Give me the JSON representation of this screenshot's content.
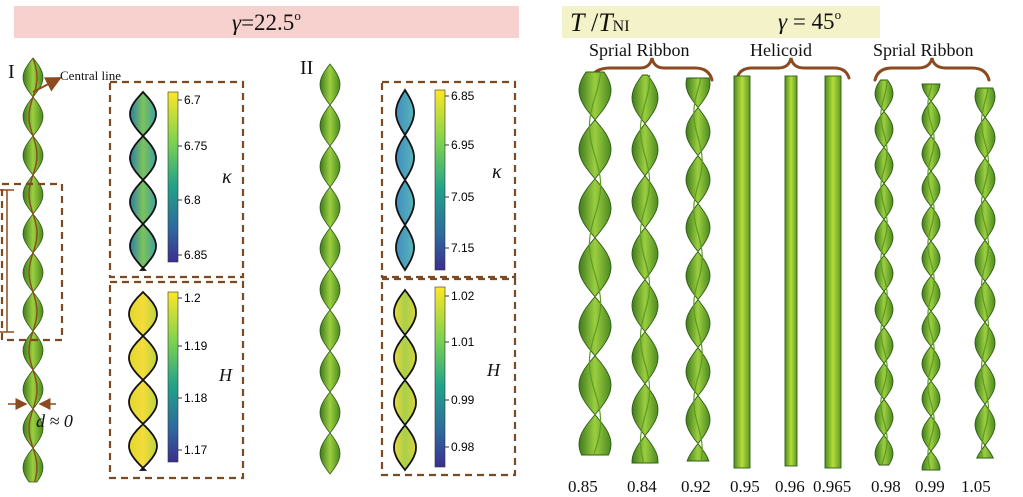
{
  "left_panel": {
    "banner": {
      "gamma_symbol": "γ",
      "gamma_text": "=22.5",
      "degree": "o",
      "color": "#f7d1cd"
    },
    "specimen_I": {
      "label": "I",
      "central_line": "Central line",
      "d_label": "d ≈ 0"
    },
    "specimen_II": {
      "label": "II"
    },
    "I_kappa": {
      "symbol": "κ",
      "ticks": [
        "6.7",
        "6.75",
        "6.8",
        "6.85"
      ]
    },
    "I_H": {
      "symbol": "H",
      "ticks": [
        "1.2",
        "1.19",
        "1.18",
        "1.17"
      ]
    },
    "II_kappa": {
      "symbol": "κ",
      "ticks": [
        "6.85",
        "6.95",
        "7.05",
        "7.15"
      ]
    },
    "II_H": {
      "symbol": "H",
      "ticks": [
        "1.02",
        "1.01",
        "0.99",
        "0.98"
      ]
    }
  },
  "right_panel": {
    "banner": {
      "ratio_T": "T",
      "ratio_slash": " /",
      "ratio_T2": "T",
      "ratio_sub": "NI",
      "gamma_symbol": "γ",
      "gamma_text": " = 45",
      "degree": "o",
      "color": "#f4f2c8"
    },
    "groups": [
      {
        "label": "Sprial Ribbon"
      },
      {
        "label": "Helicoid"
      },
      {
        "label": "Sprial Ribbon"
      }
    ],
    "temperatures": [
      "0.85",
      "0.84",
      "0.92",
      "0.95",
      "0.96",
      "0.965",
      "0.98",
      "0.99",
      "1.05"
    ]
  },
  "colors": {
    "ribbon_green": "#7fb83a",
    "dark_green": "#3f7a1e",
    "light_green": "#c6e03a",
    "bracket": "#8b4a1f",
    "colorbar_top": "#fde725",
    "colorbar_mid": "#21a38a",
    "colorbar_bottom": "#3b2f8f"
  }
}
